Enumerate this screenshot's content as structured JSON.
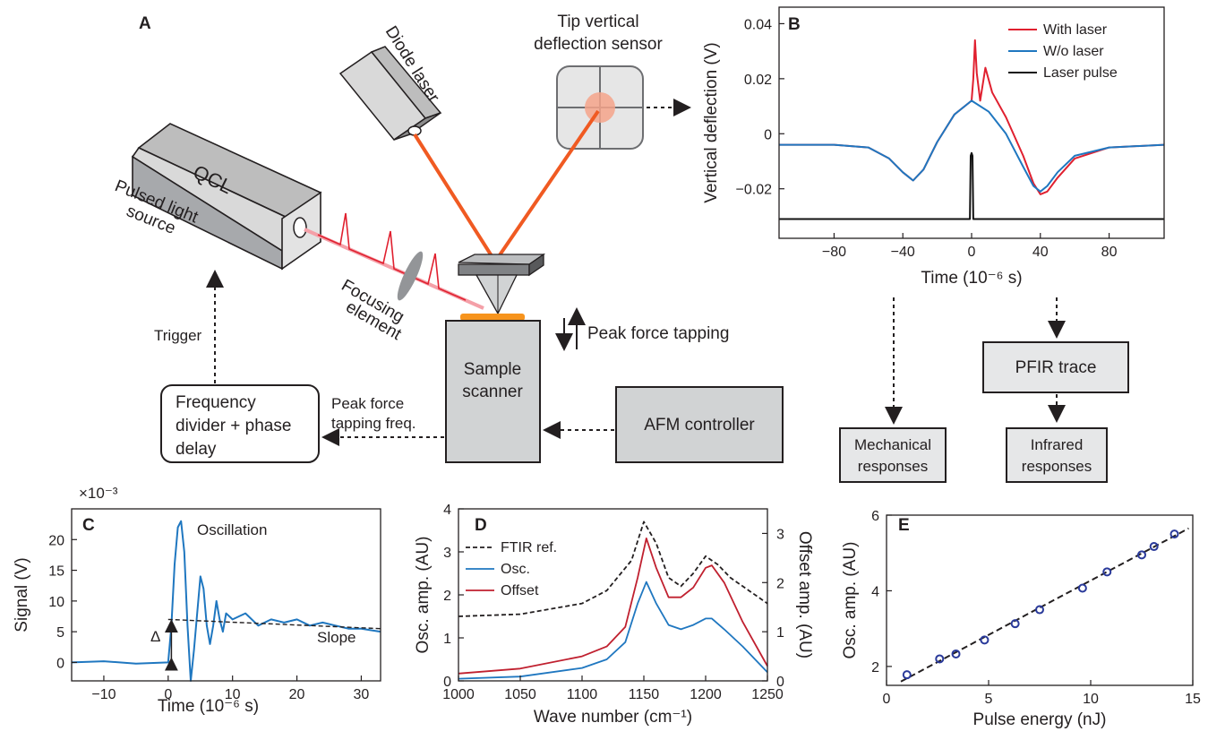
{
  "panels": {
    "A": {
      "letter": "A",
      "diode_laser": "Diode laser",
      "sensor_line1": "Tip vertical",
      "sensor_line2": "deflection sensor",
      "qcl": "QCL",
      "pulsed_line1": "Pulsed light",
      "pulsed_line2": "source",
      "focusing_line1": "Focusing",
      "focusing_line2": "element",
      "trigger": "Trigger",
      "peak_force_tapping": "Peak force tapping",
      "sample_scanner_line1": "Sample",
      "sample_scanner_line2": "scanner",
      "freq_divider_line1": "Frequency",
      "freq_divider_line2": "divider + phase",
      "freq_divider_line3": "delay",
      "peak_freq_line1": "Peak force",
      "peak_freq_line2": "tapping freq.",
      "afm_controller": "AFM controller"
    },
    "B": {
      "letter": "B",
      "pfir_trace": "PFIR trace",
      "mech_line1": "Mechanical",
      "mech_line2": "responses",
      "ir_line1": "Infrared",
      "ir_line2": "responses"
    },
    "C": {
      "letter": "C",
      "multiplier": "×10⁻³",
      "oscillation": "Oscillation",
      "slope": "Slope",
      "delta": "Δ"
    },
    "D": {
      "letter": "D"
    },
    "E": {
      "letter": "E"
    }
  },
  "colors": {
    "with_laser": "#e0202f",
    "without_laser": "#1f77c0",
    "laser_pulse": "#111111",
    "osc": "#1f77c0",
    "offset": "#c0202f",
    "ftir": "#231f20",
    "markers": "#2a3a9a",
    "beam_orange": "#f05a22",
    "beam_pink": "#f4a0a8",
    "box_gray": "#cfcfd0",
    "sample_orange": "#f7941d"
  },
  "chart_data": [
    {
      "panel": "B",
      "type": "line",
      "xlabel": "Time (10⁻⁶ s)",
      "ylabel": "Vertical deflection (V)",
      "xlim": [
        -112,
        112
      ],
      "ylim": [
        -0.038,
        0.046
      ],
      "xticks": [
        -80,
        -40,
        0,
        40,
        80
      ],
      "xtick_labels": [
        "−80",
        "−40",
        "0",
        "40",
        "80"
      ],
      "yticks": [
        -0.02,
        0,
        0.02,
        0.04
      ],
      "ytick_labels": [
        "−0.02",
        "0",
        "0.02",
        "0.04"
      ],
      "legend_position": "top-right",
      "series": [
        {
          "name": "With laser",
          "x": [
            -112,
            -80,
            -60,
            -48,
            -40,
            -34,
            -28,
            -20,
            -10,
            0,
            1,
            2,
            3,
            5,
            8,
            12,
            20,
            30,
            36,
            40,
            44,
            50,
            60,
            80,
            112
          ],
          "y": [
            -0.004,
            -0.004,
            -0.005,
            -0.009,
            -0.014,
            -0.017,
            -0.013,
            -0.003,
            0.007,
            0.012,
            0.02,
            0.034,
            0.022,
            0.012,
            0.024,
            0.015,
            0.006,
            -0.008,
            -0.018,
            -0.022,
            -0.021,
            -0.016,
            -0.009,
            -0.005,
            -0.004
          ]
        },
        {
          "name": "W/o laser",
          "x": [
            -112,
            -80,
            -60,
            -48,
            -40,
            -34,
            -28,
            -20,
            -10,
            0,
            10,
            20,
            30,
            36,
            40,
            44,
            50,
            60,
            80,
            112
          ],
          "y": [
            -0.004,
            -0.004,
            -0.005,
            -0.009,
            -0.014,
            -0.017,
            -0.013,
            -0.003,
            0.007,
            0.012,
            0.008,
            0.0,
            -0.012,
            -0.019,
            -0.021,
            -0.019,
            -0.014,
            -0.008,
            -0.005,
            -0.004
          ]
        },
        {
          "name": "Laser pulse",
          "x": [
            -112,
            -1,
            -0.5,
            0,
            0.5,
            1,
            112
          ],
          "y": [
            -0.031,
            -0.031,
            -0.008,
            -0.007,
            -0.008,
            -0.031,
            -0.031
          ]
        }
      ]
    },
    {
      "panel": "C",
      "type": "line",
      "xlabel": "Time (10⁻⁶ s)",
      "ylabel": "Signal (V)",
      "xlim": [
        -15,
        33
      ],
      "ylim": [
        -3,
        25
      ],
      "xticks": [
        -10,
        0,
        10,
        20,
        30
      ],
      "xtick_labels": [
        "−10",
        "0",
        "10",
        "20",
        "30"
      ],
      "yticks": [
        0,
        5,
        10,
        15,
        20
      ],
      "ytick_labels": [
        "0",
        "5",
        "10",
        "15",
        "20"
      ],
      "series": [
        {
          "name": "",
          "x": [
            -15,
            -10,
            -5,
            0,
            0.5,
            1,
            1.5,
            2,
            2.5,
            3,
            3.5,
            4,
            4.5,
            5,
            5.5,
            6,
            6.5,
            7,
            7.5,
            8,
            8.5,
            9,
            10,
            12,
            14,
            16,
            18,
            20,
            22,
            24,
            26,
            28,
            30,
            33
          ],
          "y": [
            0,
            0.2,
            -0.2,
            0,
            6,
            16,
            22,
            23,
            18,
            6,
            -3,
            2,
            8,
            14,
            12,
            6,
            3,
            6,
            10,
            7,
            5,
            8,
            7,
            8,
            6,
            7,
            6.5,
            7,
            6,
            6.5,
            6,
            5.5,
            5.5,
            5
          ]
        },
        {
          "name": "",
          "x": [
            0,
            33
          ],
          "y": [
            7,
            5.5
          ]
        }
      ]
    },
    {
      "panel": "D",
      "type": "line",
      "xlabel": "Wave number (cm⁻¹)",
      "ylabel": "Osc. amp. (AU)",
      "ylabel_right": "Offset amp. (AU)",
      "xlim": [
        1000,
        1250
      ],
      "ylim": [
        0,
        4
      ],
      "ylim_right": [
        0,
        3.5
      ],
      "xticks": [
        1000,
        1050,
        1100,
        1150,
        1200,
        1250
      ],
      "xtick_labels": [
        "1000",
        "1050",
        "1100",
        "1150",
        "1200",
        "1250"
      ],
      "yticks": [
        0,
        1,
        2,
        3,
        4
      ],
      "ytick_labels": [
        "0",
        "1",
        "2",
        "3",
        "4"
      ],
      "yticks_right": [
        0,
        1,
        2,
        3
      ],
      "ytick_labels_right": [
        "0",
        "1",
        "2",
        "3"
      ],
      "legend_position": "top-left",
      "series": [
        {
          "name": "FTIR ref.",
          "axis": "left",
          "x": [
            1000,
            1050,
            1100,
            1120,
            1140,
            1150,
            1160,
            1170,
            1180,
            1190,
            1200,
            1210,
            1220,
            1235,
            1250
          ],
          "y": [
            1.5,
            1.55,
            1.8,
            2.1,
            2.8,
            3.7,
            3.2,
            2.4,
            2.2,
            2.5,
            2.9,
            2.7,
            2.4,
            2.1,
            1.8
          ]
        },
        {
          "name": "Osc.",
          "axis": "left",
          "x": [
            1000,
            1050,
            1100,
            1120,
            1135,
            1145,
            1152,
            1160,
            1170,
            1180,
            1190,
            1200,
            1205,
            1215,
            1230,
            1250
          ],
          "y": [
            0.05,
            0.1,
            0.3,
            0.5,
            0.9,
            1.8,
            2.3,
            1.8,
            1.3,
            1.2,
            1.3,
            1.45,
            1.45,
            1.2,
            0.8,
            0.2
          ]
        },
        {
          "name": "Offset",
          "axis": "right",
          "x": [
            1000,
            1050,
            1100,
            1120,
            1135,
            1145,
            1152,
            1160,
            1170,
            1180,
            1190,
            1200,
            1205,
            1215,
            1230,
            1250
          ],
          "y": [
            0.15,
            0.25,
            0.5,
            0.7,
            1.1,
            2.1,
            2.9,
            2.3,
            1.7,
            1.7,
            1.9,
            2.3,
            2.35,
            2.0,
            1.2,
            0.3
          ]
        }
      ]
    },
    {
      "panel": "E",
      "type": "scatter",
      "xlabel": "Pulse energy (nJ)",
      "ylabel": "Osc. amp. (AU)",
      "xlim": [
        0,
        15
      ],
      "ylim": [
        1.5,
        6
      ],
      "xticks": [
        0,
        5,
        10,
        15
      ],
      "xtick_labels": [
        "0",
        "5",
        "10",
        "15"
      ],
      "yticks": [
        2,
        4,
        6
      ],
      "ytick_labels": [
        "2",
        "4",
        "6"
      ],
      "points": {
        "x": [
          1.0,
          2.6,
          3.4,
          4.8,
          6.3,
          7.5,
          9.6,
          10.8,
          12.5,
          13.1,
          14.1
        ],
        "y": [
          1.78,
          2.2,
          2.33,
          2.7,
          3.13,
          3.5,
          4.07,
          4.5,
          4.95,
          5.17,
          5.5
        ]
      },
      "fit": {
        "x": [
          0.7,
          14.8
        ],
        "y": [
          1.6,
          5.65
        ]
      }
    }
  ],
  "legend_B": [
    "With laser",
    "W/o laser",
    "Laser pulse"
  ],
  "legend_D": [
    "FTIR ref.",
    "Osc.",
    "Offset"
  ]
}
